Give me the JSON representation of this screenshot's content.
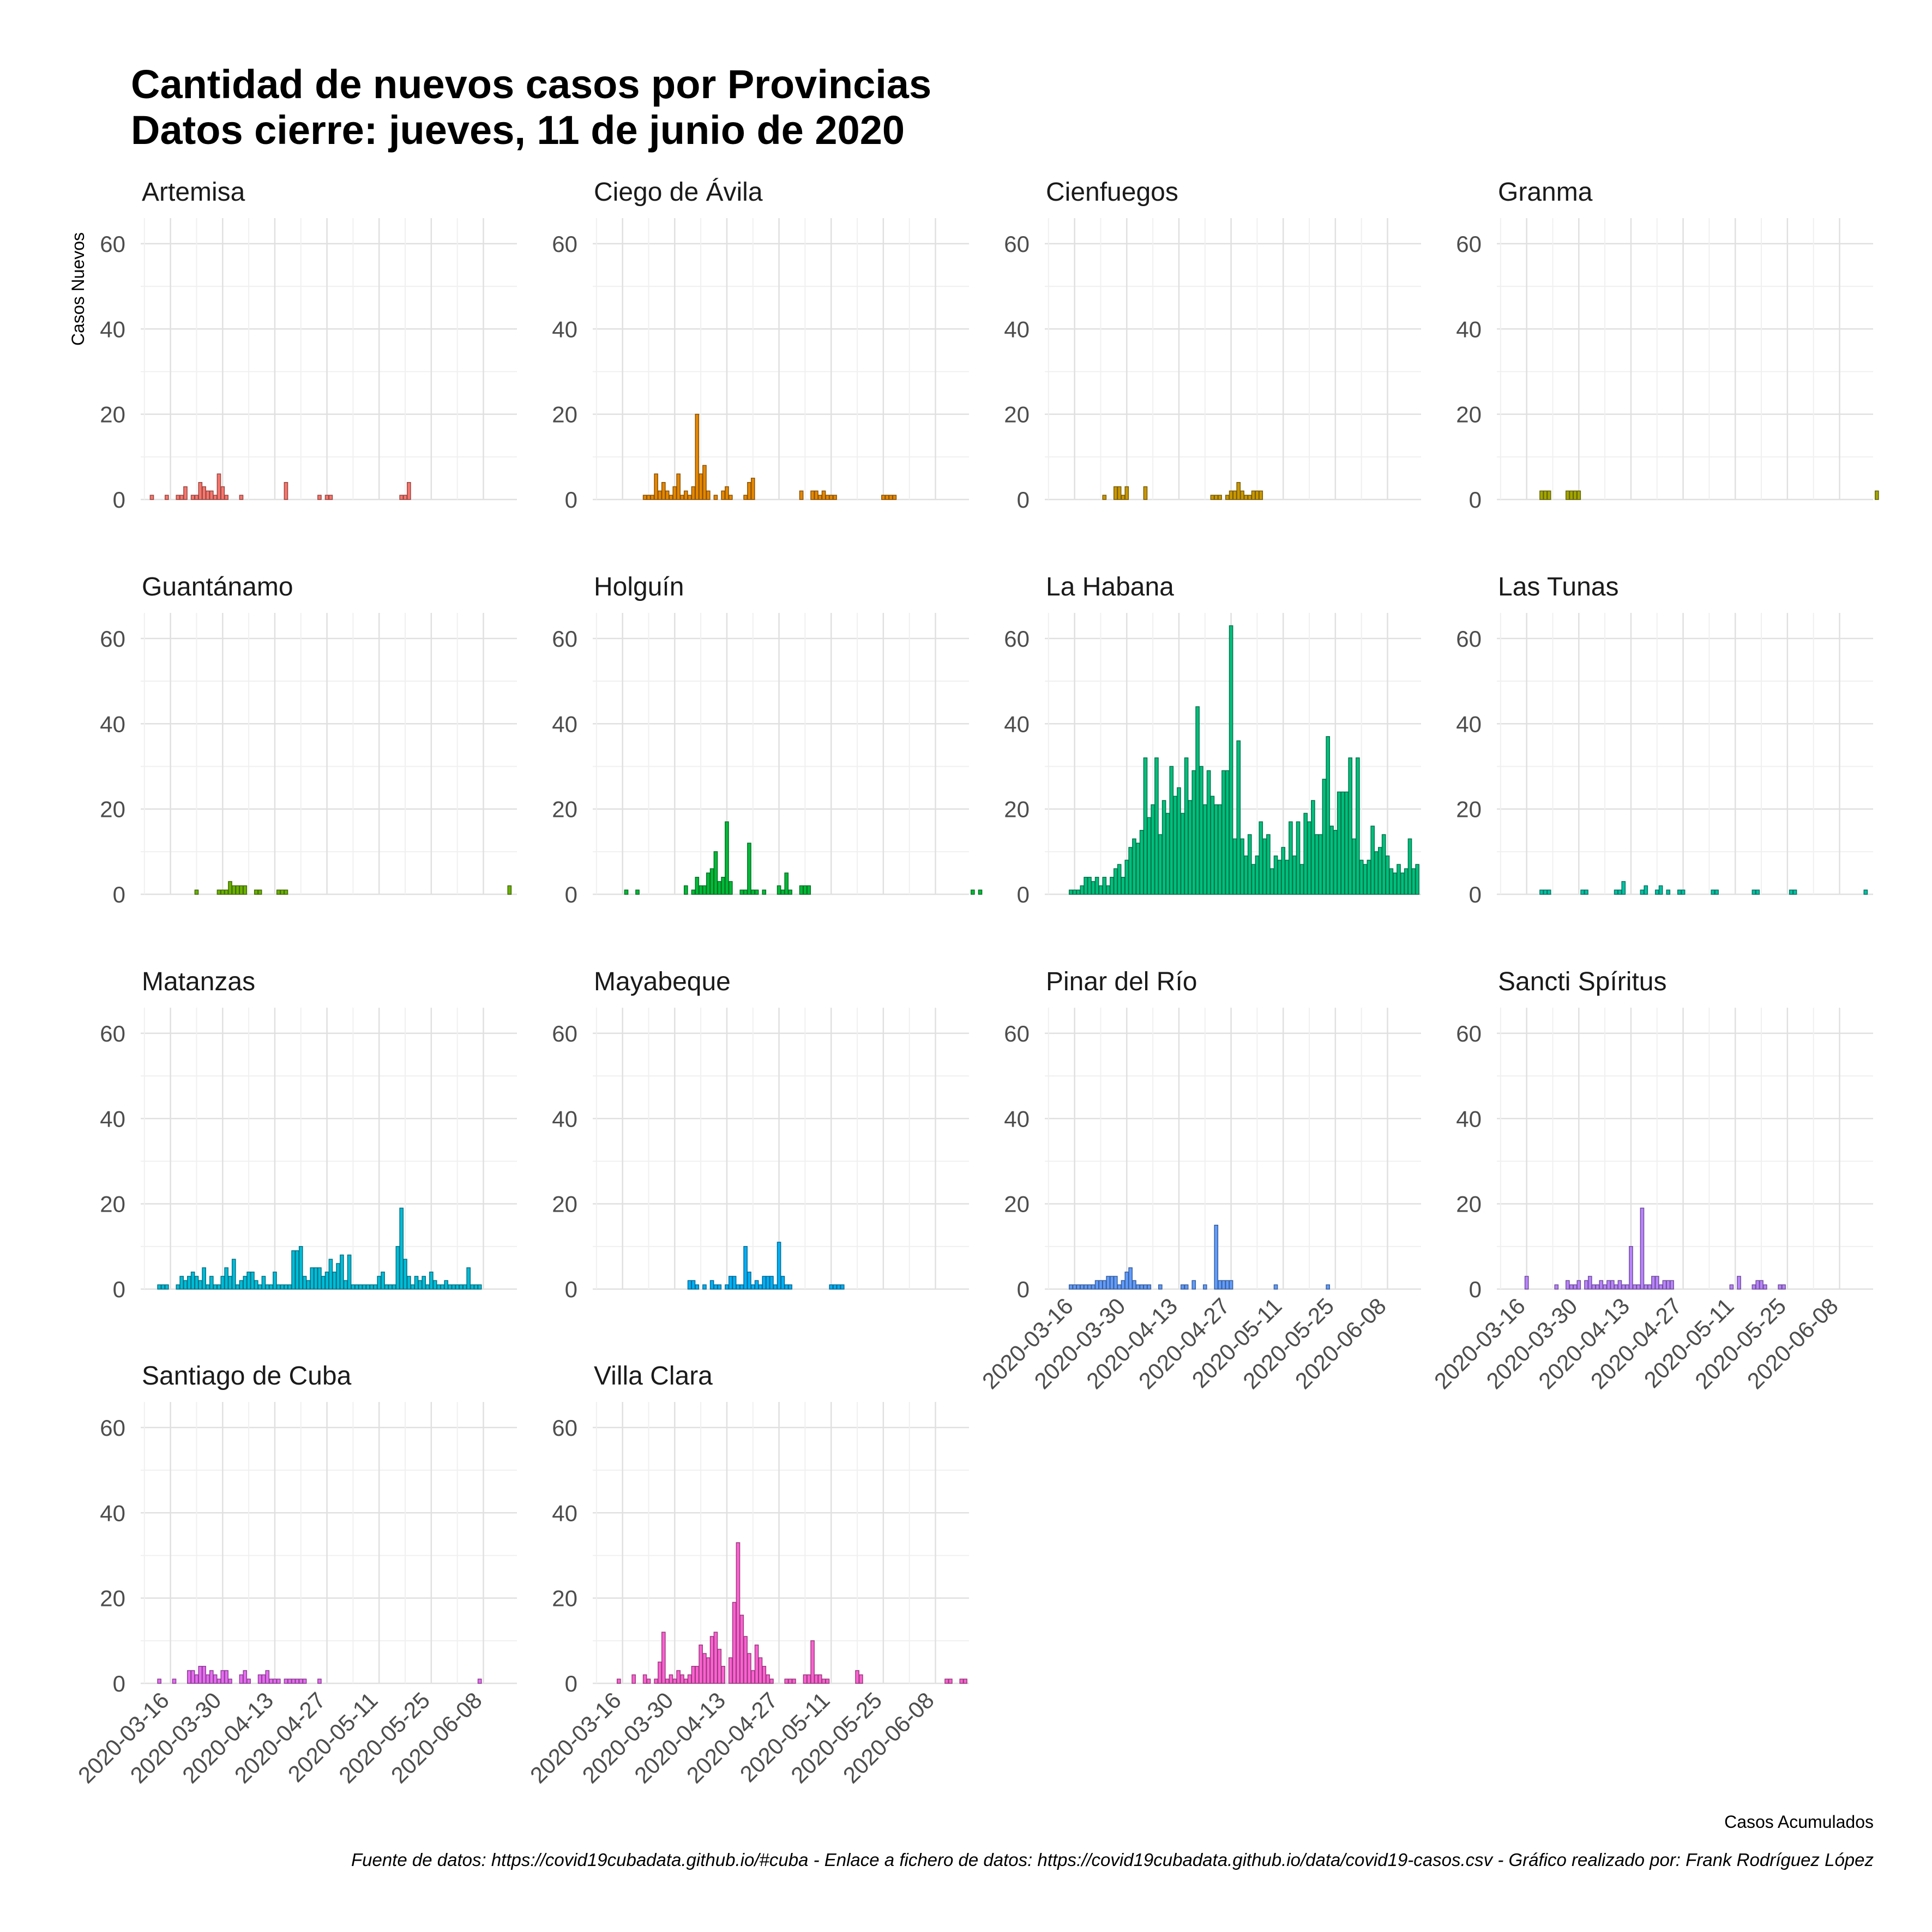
{
  "chart_data": {
    "type": "bar",
    "title_lines": [
      "Cantidad de nuevos casos por Provincias",
      "Datos cierre: jueves, 11 de junio de 2020"
    ],
    "ylabel": "Casos Nuevos",
    "xlabel": "Casos Acumulados",
    "caption": "Fuente de datos: https://covid19cubadata.github.io/#cuba - Enlace a fichero de datos: https://covid19cubadata.github.io/data/covid19-casos.csv - Gráfico realizado por: Frank Rodríguez López",
    "ylim": [
      0,
      66
    ],
    "y_ticks": [
      0,
      20,
      40,
      60
    ],
    "x_range": [
      "2020-03-08",
      "2020-06-17"
    ],
    "x_ticks": [
      "2020-03-16",
      "2020-03-30",
      "2020-04-13",
      "2020-04-27",
      "2020-05-11",
      "2020-05-25",
      "2020-06-08"
    ],
    "grid": true,
    "series": [
      {
        "name": "Artemisa",
        "color": "#F8766D",
        "x_start": "2020-03-11",
        "values": [
          1,
          0,
          0,
          0,
          1,
          0,
          0,
          1,
          1,
          3,
          0,
          1,
          1,
          4,
          3,
          2,
          2,
          1,
          6,
          3,
          1,
          0,
          0,
          0,
          1,
          0,
          0,
          0,
          0,
          0,
          0,
          0,
          0,
          0,
          0,
          0,
          4,
          0,
          0,
          0,
          0,
          0,
          0,
          0,
          0,
          1,
          0,
          1,
          1,
          0,
          0,
          0,
          0,
          0,
          0,
          0,
          0,
          0,
          0,
          0,
          0,
          0,
          0,
          0,
          0,
          0,
          0,
          1,
          1,
          4
        ]
      },
      {
        "name": "Ciego de Ávila",
        "color": "#E58700",
        "x_start": "2020-03-22",
        "values": [
          1,
          1,
          1,
          6,
          2,
          4,
          2,
          1,
          3,
          6,
          1,
          2,
          1,
          3,
          20,
          6,
          8,
          2,
          0,
          1,
          0,
          2,
          3,
          1,
          0,
          0,
          0,
          1,
          4,
          5,
          0,
          0,
          0,
          0,
          0,
          0,
          0,
          0,
          0,
          0,
          0,
          0,
          2,
          0,
          0,
          2,
          2,
          1,
          2,
          1,
          1,
          1,
          0,
          0,
          0,
          0,
          0,
          0,
          0,
          0,
          0,
          0,
          0,
          0,
          1,
          1,
          1,
          1,
          0,
          0,
          0,
          0
        ]
      },
      {
        "name": "Cienfuegos",
        "color": "#C99800",
        "x_start": "2020-03-24",
        "values": [
          1,
          0,
          0,
          3,
          3,
          1,
          3,
          0,
          0,
          0,
          0,
          3,
          0,
          0,
          0,
          0,
          0,
          0,
          0,
          0,
          0,
          0,
          0,
          0,
          0,
          0,
          0,
          0,
          0,
          1,
          1,
          1,
          0,
          1,
          2,
          2,
          4,
          2,
          1,
          1,
          2,
          2,
          2
        ]
      },
      {
        "name": "Granma",
        "color": "#A3A500",
        "x_start": "2020-03-20",
        "values": [
          2,
          2,
          2,
          0,
          0,
          0,
          0,
          2,
          2,
          2,
          2,
          0,
          0,
          0,
          0,
          0,
          0,
          0,
          0,
          0,
          0,
          0,
          0,
          0,
          0,
          0,
          0,
          0,
          0,
          0,
          0,
          0,
          0,
          0,
          0,
          0,
          0,
          0,
          0,
          0,
          0,
          0,
          0,
          0,
          0,
          0,
          0,
          0,
          0,
          0,
          0,
          0,
          0,
          0,
          0,
          0,
          0,
          0,
          0,
          0,
          0,
          0,
          0,
          0,
          0,
          0,
          0,
          0,
          0,
          0,
          0,
          0,
          0,
          0,
          0,
          0,
          0,
          0,
          0,
          0,
          0,
          0,
          0,
          0,
          0,
          0,
          0,
          0,
          0,
          0,
          2
        ]
      },
      {
        "name": "Guantánamo",
        "color": "#6BB100",
        "x_start": "2020-03-23",
        "values": [
          1,
          0,
          0,
          0,
          0,
          0,
          1,
          1,
          1,
          3,
          2,
          2,
          2,
          2,
          0,
          0,
          1,
          1,
          0,
          0,
          0,
          0,
          1,
          1,
          1,
          0,
          0,
          0,
          0,
          0,
          0,
          0,
          0,
          0,
          0,
          0,
          0,
          0,
          0,
          0,
          0,
          0,
          0,
          0,
          0,
          0,
          0,
          0,
          0,
          0,
          0,
          0,
          0,
          0,
          0,
          0,
          0,
          0,
          0,
          0,
          0,
          0,
          0,
          0,
          0,
          0,
          0,
          0,
          0,
          0,
          0,
          0,
          0,
          0,
          0,
          0,
          0,
          0,
          0,
          0,
          0,
          0,
          0,
          0,
          2
        ]
      },
      {
        "name": "Holguín",
        "color": "#00BA38",
        "x_start": "2020-03-17",
        "values": [
          1,
          0,
          0,
          1,
          0,
          0,
          0,
          0,
          0,
          0,
          0,
          0,
          0,
          0,
          0,
          0,
          2,
          0,
          1,
          4,
          2,
          2,
          5,
          6,
          10,
          3,
          4,
          17,
          3,
          0,
          0,
          1,
          1,
          12,
          1,
          1,
          0,
          1,
          0,
          0,
          0,
          2,
          1,
          5,
          1,
          0,
          0,
          2,
          2,
          2,
          0,
          0,
          0,
          0,
          0,
          0,
          0,
          0,
          0,
          0,
          0,
          0,
          0,
          0,
          0,
          0,
          0,
          0,
          0,
          0,
          0,
          0,
          0,
          0,
          0,
          0,
          0,
          0,
          0,
          0,
          0,
          0,
          0,
          0,
          0,
          0,
          0,
          0,
          0,
          0,
          0,
          0,
          0,
          1,
          0,
          1
        ]
      },
      {
        "name": "La Habana",
        "color": "#00BF7D",
        "x_start": "2020-03-15",
        "values": [
          1,
          1,
          1,
          2,
          4,
          4,
          3,
          4,
          2,
          4,
          2,
          4,
          6,
          7,
          4,
          8,
          11,
          13,
          12,
          15,
          32,
          18,
          21,
          32,
          14,
          22,
          19,
          30,
          23,
          25,
          19,
          32,
          22,
          29,
          44,
          30,
          21,
          29,
          23,
          21,
          21,
          29,
          29,
          63,
          13,
          36,
          13,
          9,
          14,
          7,
          9,
          17,
          13,
          14,
          6,
          9,
          8,
          11,
          8,
          17,
          9,
          17,
          7,
          19,
          17,
          22,
          14,
          14,
          27,
          37,
          16,
          15,
          24,
          24,
          24,
          32,
          13,
          32,
          8,
          7,
          8,
          16,
          10,
          11,
          14,
          9,
          6,
          5,
          7,
          5,
          6,
          13,
          6,
          7
        ]
      },
      {
        "name": "Las Tunas",
        "color": "#00C1A3",
        "x_start": "2020-03-20",
        "values": [
          1,
          1,
          1,
          0,
          0,
          0,
          0,
          0,
          0,
          0,
          0,
          1,
          1,
          0,
          0,
          0,
          0,
          0,
          0,
          0,
          1,
          1,
          3,
          0,
          0,
          0,
          0,
          1,
          2,
          0,
          0,
          1,
          2,
          0,
          1,
          0,
          0,
          1,
          1,
          0,
          0,
          0,
          0,
          0,
          0,
          0,
          1,
          1,
          0,
          0,
          0,
          0,
          0,
          0,
          0,
          0,
          0,
          1,
          1,
          0,
          0,
          0,
          0,
          0,
          0,
          0,
          0,
          1,
          1,
          0,
          0,
          0,
          0,
          0,
          0,
          0,
          0,
          0,
          0,
          0,
          0,
          0,
          0,
          0,
          0,
          0,
          0,
          1
        ]
      },
      {
        "name": "Matanzas",
        "color": "#00BCD8",
        "x_start": "2020-03-13",
        "values": [
          1,
          1,
          1,
          0,
          0,
          1,
          3,
          2,
          3,
          4,
          3,
          2,
          5,
          1,
          3,
          1,
          1,
          3,
          5,
          3,
          7,
          1,
          2,
          3,
          4,
          4,
          2,
          1,
          3,
          1,
          1,
          4,
          1,
          1,
          1,
          1,
          9,
          9,
          10,
          3,
          2,
          5,
          5,
          5,
          3,
          4,
          7,
          4,
          6,
          8,
          2,
          8,
          1,
          1,
          1,
          1,
          1,
          1,
          1,
          3,
          4,
          1,
          1,
          1,
          10,
          19,
          7,
          3,
          1,
          3,
          2,
          3,
          1,
          4,
          2,
          1,
          1,
          2,
          1,
          1,
          1,
          1,
          1,
          5,
          1,
          1,
          1
        ]
      },
      {
        "name": "Mayabeque",
        "color": "#00B0F6",
        "x_start": "2020-04-03",
        "values": [
          2,
          2,
          1,
          0,
          1,
          0,
          2,
          1,
          1,
          0,
          1,
          3,
          3,
          1,
          1,
          10,
          4,
          1,
          2,
          1,
          3,
          3,
          3,
          1,
          11,
          3,
          1,
          1,
          0,
          0,
          0,
          0,
          0,
          0,
          0,
          0,
          0,
          0,
          1,
          1,
          1,
          1
        ]
      },
      {
        "name": "Pinar del Río",
        "color": "#619CFF",
        "x_start": "2020-03-15",
        "values": [
          1,
          1,
          1,
          1,
          1,
          1,
          1,
          2,
          2,
          2,
          3,
          3,
          3,
          1,
          2,
          4,
          5,
          2,
          1,
          1,
          1,
          1,
          0,
          0,
          1,
          0,
          0,
          0,
          0,
          0,
          1,
          1,
          0,
          2,
          0,
          0,
          1,
          0,
          0,
          15,
          2,
          2,
          2,
          2,
          0,
          0,
          0,
          0,
          0,
          0,
          0,
          0,
          0,
          0,
          0,
          1,
          0,
          0,
          0,
          0,
          0,
          0,
          0,
          0,
          0,
          0,
          0,
          0,
          0,
          1
        ]
      },
      {
        "name": "Sancti Spíritus",
        "color": "#B983FF",
        "x_start": "2020-03-16",
        "values": [
          3,
          0,
          0,
          0,
          0,
          0,
          0,
          0,
          1,
          0,
          0,
          2,
          1,
          1,
          2,
          0,
          2,
          3,
          1,
          1,
          2,
          1,
          2,
          2,
          1,
          2,
          1,
          1,
          10,
          1,
          1,
          19,
          1,
          1,
          3,
          3,
          1,
          2,
          2,
          2,
          0,
          0,
          0,
          0,
          0,
          0,
          0,
          0,
          0,
          0,
          0,
          0,
          0,
          0,
          0,
          1,
          0,
          3,
          0,
          0,
          0,
          1,
          2,
          2,
          1,
          0,
          0,
          0,
          1,
          1
        ]
      },
      {
        "name": "Santiago de Cuba",
        "color": "#E76BF3",
        "x_start": "2020-03-13",
        "values": [
          1,
          0,
          0,
          0,
          1,
          0,
          0,
          0,
          3,
          3,
          2,
          4,
          4,
          2,
          3,
          2,
          1,
          3,
          3,
          1,
          0,
          0,
          2,
          3,
          1,
          0,
          0,
          2,
          2,
          3,
          1,
          1,
          1,
          0,
          1,
          1,
          1,
          1,
          1,
          1,
          0,
          0,
          0,
          1,
          0,
          0,
          0,
          0,
          0,
          0,
          0,
          0,
          0,
          0,
          0,
          0,
          0,
          0,
          0,
          0,
          0,
          0,
          0,
          0,
          0,
          0,
          0,
          0,
          0,
          0,
          0,
          0,
          0,
          0,
          0,
          0,
          0,
          0,
          0,
          0,
          0,
          0,
          0,
          0,
          0,
          0,
          1
        ]
      },
      {
        "name": "Villa Clara",
        "color": "#FD61D1",
        "x_start": "2020-03-15",
        "values": [
          1,
          0,
          0,
          0,
          2,
          0,
          0,
          2,
          1,
          0,
          1,
          5,
          12,
          1,
          2,
          1,
          3,
          2,
          1,
          2,
          4,
          4,
          9,
          7,
          6,
          11,
          12,
          8,
          4,
          0,
          6,
          19,
          33,
          16,
          11,
          7,
          3,
          9,
          6,
          4,
          2,
          1,
          0,
          0,
          0,
          1,
          1,
          1,
          0,
          0,
          2,
          2,
          10,
          2,
          2,
          1,
          1,
          0,
          0,
          0,
          0,
          0,
          0,
          0,
          3,
          2,
          0,
          0,
          0,
          0,
          0,
          0,
          0,
          0,
          0,
          0,
          0,
          0,
          0,
          0,
          0,
          0,
          0,
          0,
          0,
          0,
          0,
          0,
          1,
          1,
          0,
          0,
          1,
          1
        ]
      }
    ]
  }
}
